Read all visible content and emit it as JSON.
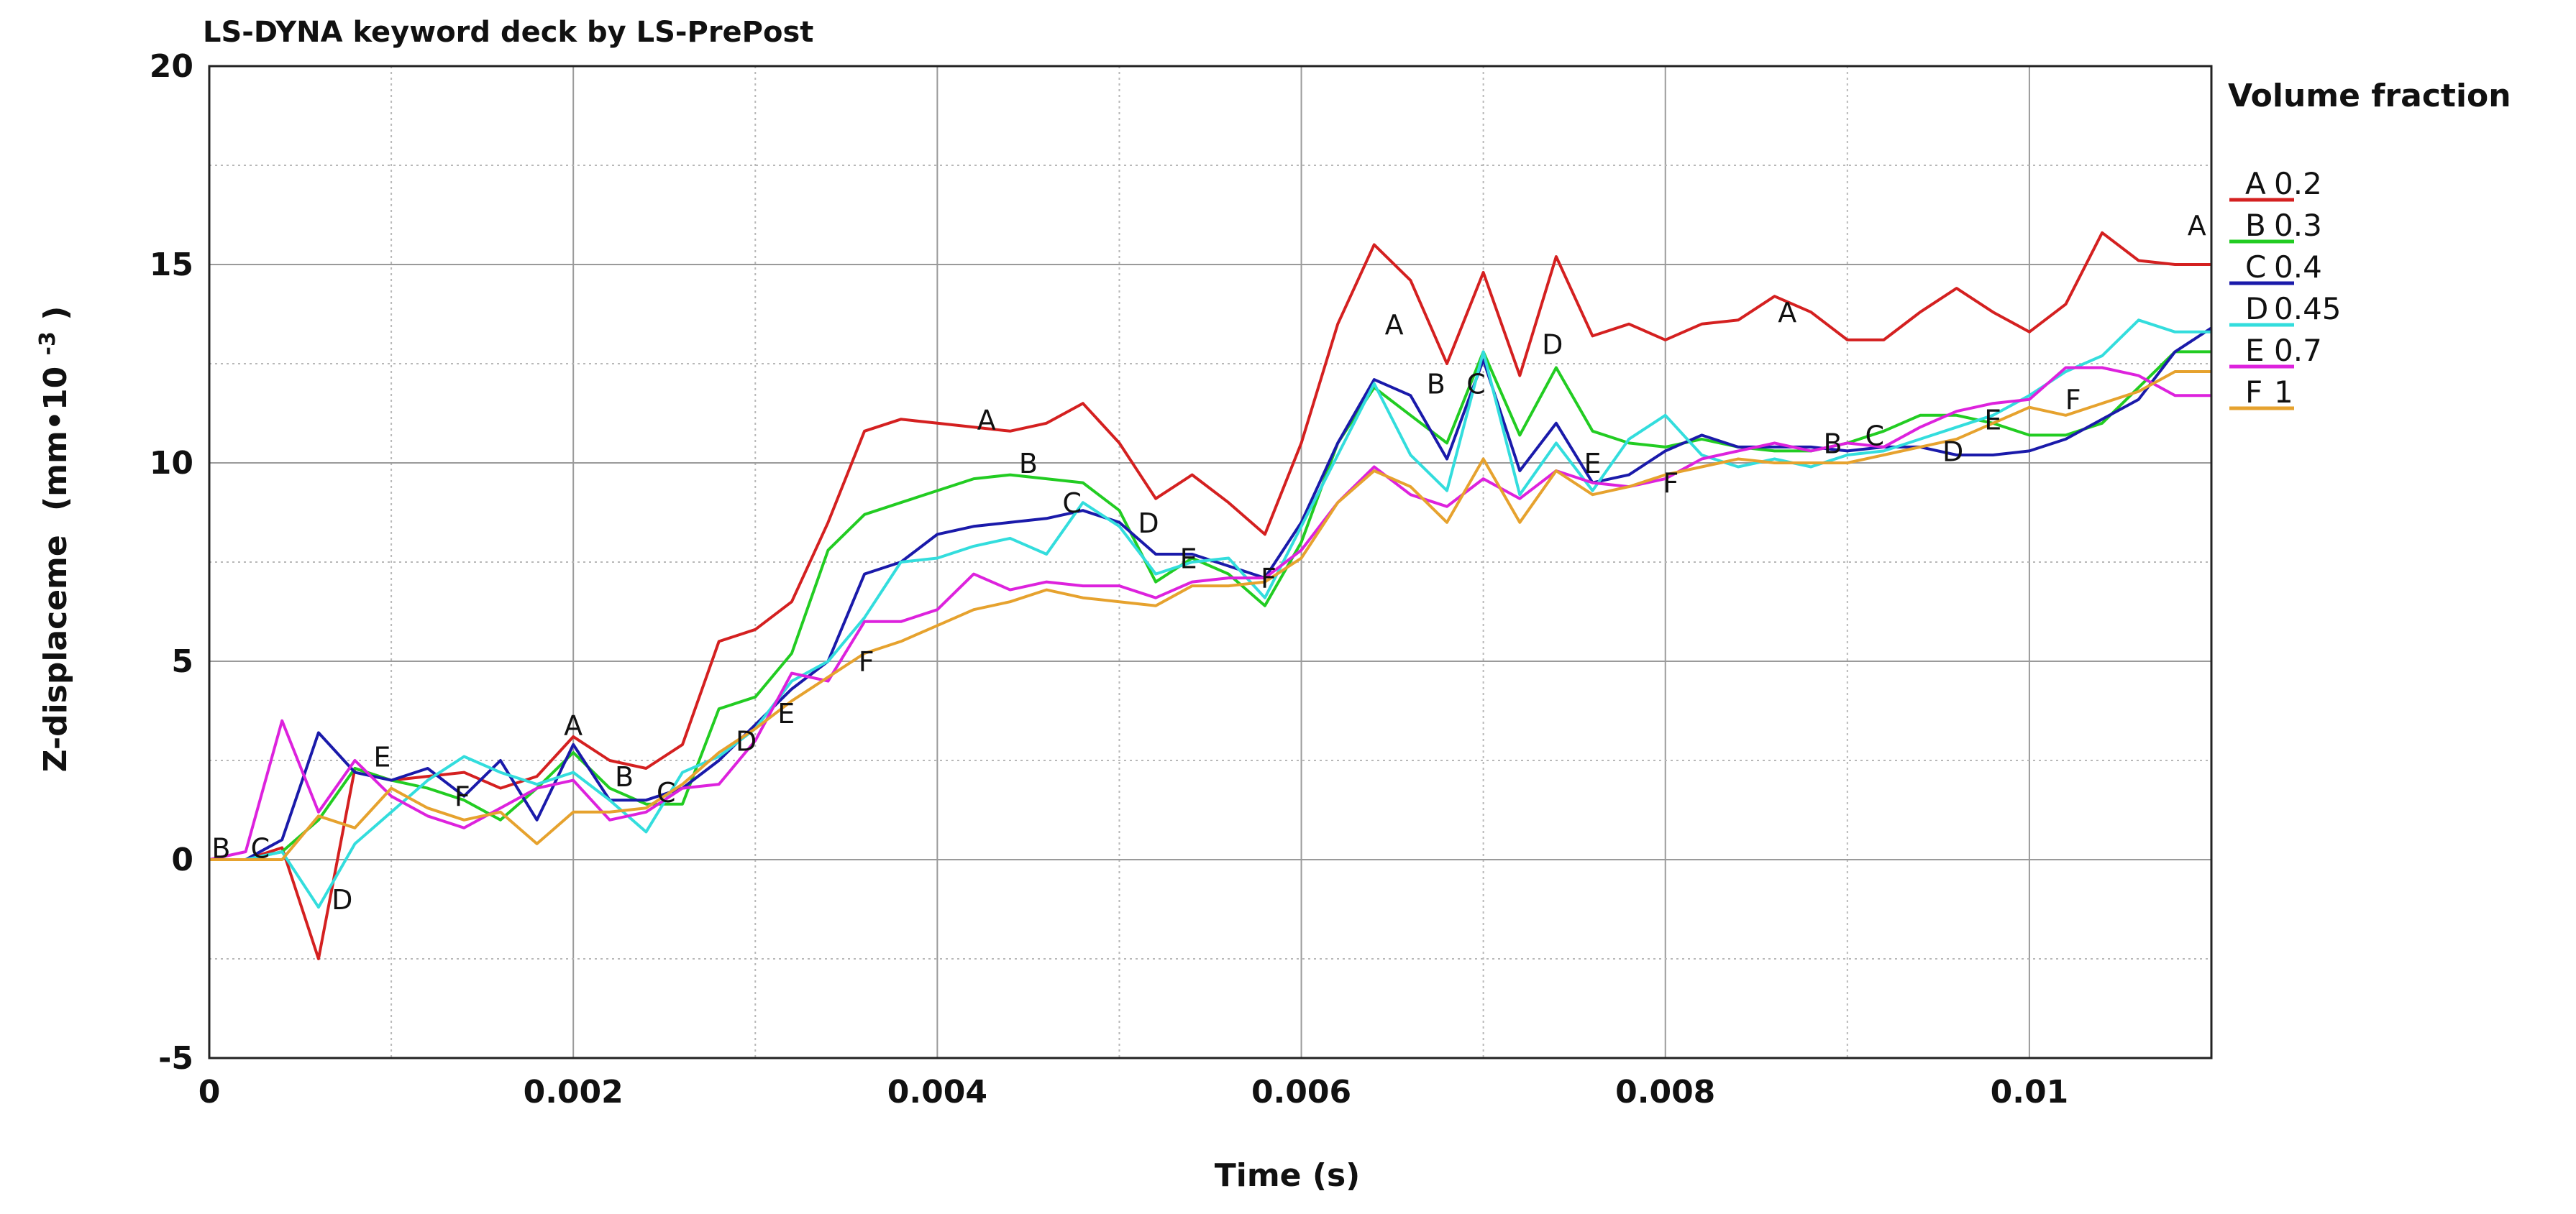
{
  "chart_data": {
    "type": "line",
    "title": "LS-DYNA keyword deck by LS-PrePost",
    "xlabel": "Time (s)",
    "ylabel_main": "Z-displaceme",
    "ylabel_unit_prefix": "(mm•10",
    "ylabel_unit_exp": "-3",
    "ylabel_unit_suffix": ")",
    "xlim": [
      0,
      0.011
    ],
    "ylim": [
      -5,
      20
    ],
    "xticks": [
      0,
      0.002,
      0.004,
      0.006,
      0.008,
      0.01
    ],
    "xtick_labels": [
      "0",
      "0.002",
      "0.004",
      "0.006",
      "0.008",
      "0.01"
    ],
    "yticks": [
      -5,
      0,
      5,
      10,
      15,
      20
    ],
    "ytick_labels": [
      "-5",
      "0",
      "5",
      "10",
      "15",
      "20"
    ],
    "grid": true,
    "legend_title": "Volume fraction",
    "legend_position": "right",
    "x": [
      0,
      0.0002,
      0.0004,
      0.0006,
      0.0008,
      0.001,
      0.0012,
      0.0014,
      0.0016,
      0.0018,
      0.002,
      0.0022,
      0.0024,
      0.0026,
      0.0028,
      0.003,
      0.0032,
      0.0034,
      0.0036,
      0.0038,
      0.004,
      0.0042,
      0.0044,
      0.0046,
      0.0048,
      0.005,
      0.0052,
      0.0054,
      0.0056,
      0.0058,
      0.006,
      0.0062,
      0.0064,
      0.0066,
      0.0068,
      0.007,
      0.0072,
      0.0074,
      0.0076,
      0.0078,
      0.008,
      0.0082,
      0.0084,
      0.0086,
      0.0088,
      0.009,
      0.0092,
      0.0094,
      0.0096,
      0.0098,
      0.01,
      0.0102,
      0.0104,
      0.0106,
      0.0108,
      0.011
    ],
    "series": [
      {
        "marker": "A",
        "name": "0.2",
        "color": "#d42020",
        "values": [
          0,
          0,
          0.3,
          -2.5,
          2.3,
          2.0,
          2.1,
          2.2,
          1.8,
          2.1,
          3.1,
          2.5,
          2.3,
          2.9,
          5.5,
          5.8,
          6.5,
          8.5,
          10.8,
          11.1,
          11.0,
          10.9,
          10.8,
          11.0,
          11.5,
          10.5,
          9.1,
          9.7,
          9.0,
          8.2,
          10.5,
          13.5,
          15.5,
          14.6,
          12.5,
          14.8,
          12.2,
          15.2,
          13.2,
          13.5,
          13.1,
          13.5,
          13.6,
          14.2,
          13.8,
          13.1,
          13.1,
          13.8,
          14.4,
          13.8,
          13.3,
          14.0,
          15.8,
          15.1,
          15.0,
          15.0
        ]
      },
      {
        "marker": "B",
        "name": "0.3",
        "color": "#22cc22",
        "values": [
          0,
          0,
          0.2,
          1.0,
          2.3,
          2.0,
          1.8,
          1.5,
          1.0,
          1.8,
          2.7,
          1.8,
          1.4,
          1.4,
          3.8,
          4.1,
          5.2,
          7.8,
          8.7,
          9.0,
          9.3,
          9.6,
          9.7,
          9.6,
          9.5,
          8.8,
          7.0,
          7.6,
          7.2,
          6.4,
          8.0,
          10.5,
          11.9,
          11.2,
          10.5,
          12.8,
          10.7,
          12.4,
          10.8,
          10.5,
          10.4,
          10.6,
          10.4,
          10.3,
          10.3,
          10.5,
          10.8,
          11.2,
          11.2,
          11.0,
          10.7,
          10.7,
          11.0,
          11.9,
          12.8,
          12.8
        ]
      },
      {
        "marker": "C",
        "name": "0.4",
        "color": "#1a1aaa",
        "values": [
          0,
          0,
          0.5,
          3.2,
          2.2,
          2.0,
          2.3,
          1.6,
          2.5,
          1.0,
          2.9,
          1.5,
          1.5,
          1.8,
          2.5,
          3.4,
          4.3,
          5.0,
          7.2,
          7.5,
          8.2,
          8.4,
          8.5,
          8.6,
          8.8,
          8.5,
          7.7,
          7.7,
          7.4,
          7.1,
          8.5,
          10.5,
          12.1,
          11.7,
          10.1,
          12.6,
          9.8,
          11.0,
          9.5,
          9.7,
          10.3,
          10.7,
          10.4,
          10.4,
          10.4,
          10.3,
          10.4,
          10.4,
          10.2,
          10.2,
          10.3,
          10.6,
          11.1,
          11.6,
          12.8,
          13.4
        ]
      },
      {
        "marker": "D",
        "name": "0.45",
        "color": "#33dddd",
        "values": [
          0,
          0,
          0.2,
          -1.2,
          0.4,
          1.2,
          2.0,
          2.6,
          2.2,
          1.9,
          2.2,
          1.5,
          0.7,
          2.2,
          2.6,
          3.3,
          4.5,
          5.0,
          6.1,
          7.5,
          7.6,
          7.9,
          8.1,
          7.7,
          9.0,
          8.4,
          7.2,
          7.5,
          7.6,
          6.6,
          8.4,
          10.2,
          12.0,
          10.2,
          9.3,
          12.8,
          9.2,
          10.5,
          9.3,
          10.6,
          11.2,
          10.2,
          9.9,
          10.1,
          9.9,
          10.2,
          10.3,
          10.6,
          10.9,
          11.2,
          11.7,
          12.3,
          12.7,
          13.6,
          13.3,
          13.3
        ]
      },
      {
        "marker": "E",
        "name": "0.7",
        "color": "#dd22dd",
        "values": [
          0,
          0.2,
          3.5,
          1.2,
          2.5,
          1.6,
          1.1,
          0.8,
          1.3,
          1.8,
          2.0,
          1.0,
          1.2,
          1.8,
          1.9,
          3.0,
          4.7,
          4.5,
          6.0,
          6.0,
          6.3,
          7.2,
          6.8,
          7.0,
          6.9,
          6.9,
          6.6,
          7.0,
          7.1,
          7.1,
          7.8,
          9.0,
          9.9,
          9.2,
          8.9,
          9.6,
          9.1,
          9.8,
          9.5,
          9.4,
          9.6,
          10.1,
          10.3,
          10.5,
          10.3,
          10.5,
          10.4,
          10.9,
          11.3,
          11.5,
          11.6,
          12.4,
          12.4,
          12.2,
          11.7,
          11.7
        ]
      },
      {
        "marker": "F",
        "name": "1",
        "color": "#e6a22e",
        "values": [
          0,
          0,
          0,
          1.1,
          0.8,
          1.8,
          1.3,
          1.0,
          1.2,
          0.4,
          1.2,
          1.2,
          1.3,
          1.9,
          2.7,
          3.3,
          4.0,
          4.6,
          5.2,
          5.5,
          5.9,
          6.3,
          6.5,
          6.8,
          6.6,
          6.5,
          6.4,
          6.9,
          6.9,
          7.0,
          7.6,
          9.0,
          9.8,
          9.4,
          8.5,
          10.1,
          8.5,
          9.8,
          9.2,
          9.4,
          9.7,
          9.9,
          10.1,
          10.0,
          10.0,
          10.0,
          10.2,
          10.4,
          10.6,
          11.0,
          11.4,
          11.2,
          11.5,
          11.8,
          12.3,
          12.3
        ]
      }
    ],
    "point_labels": [
      {
        "marker": "A",
        "x": 0.002,
        "y": 3.4
      },
      {
        "marker": "A",
        "x": 0.00427,
        "y": 11.1
      },
      {
        "marker": "A",
        "x": 0.00651,
        "y": 13.5
      },
      {
        "marker": "A",
        "x": 0.00867,
        "y": 13.8
      },
      {
        "marker": "A",
        "x": 0.01092,
        "y": 16.0
      },
      {
        "marker": "B",
        "x": 6.5e-05,
        "y": 0.3
      },
      {
        "marker": "B",
        "x": 0.00228,
        "y": 2.1
      },
      {
        "marker": "B",
        "x": 0.0045,
        "y": 10.0
      },
      {
        "marker": "B",
        "x": 0.00674,
        "y": 12.0
      },
      {
        "marker": "B",
        "x": 0.00892,
        "y": 10.5
      },
      {
        "marker": "C",
        "x": 0.00028,
        "y": 0.3
      },
      {
        "marker": "C",
        "x": 0.00251,
        "y": 1.7
      },
      {
        "marker": "C",
        "x": 0.00474,
        "y": 9.0
      },
      {
        "marker": "C",
        "x": 0.00696,
        "y": 12.0
      },
      {
        "marker": "C",
        "x": 0.00915,
        "y": 10.7
      },
      {
        "marker": "D",
        "x": 0.00073,
        "y": -1.0
      },
      {
        "marker": "D",
        "x": 0.00295,
        "y": 3.0
      },
      {
        "marker": "D",
        "x": 0.00516,
        "y": 8.5
      },
      {
        "marker": "D",
        "x": 0.00738,
        "y": 13.0
      },
      {
        "marker": "D",
        "x": 0.00958,
        "y": 10.3
      },
      {
        "marker": "E",
        "x": 0.00095,
        "y": 2.6
      },
      {
        "marker": "E",
        "x": 0.00317,
        "y": 3.7
      },
      {
        "marker": "E",
        "x": 0.00538,
        "y": 7.6
      },
      {
        "marker": "E",
        "x": 0.0076,
        "y": 10.0
      },
      {
        "marker": "E",
        "x": 0.0098,
        "y": 11.1
      },
      {
        "marker": "F",
        "x": 0.00139,
        "y": 1.6
      },
      {
        "marker": "F",
        "x": 0.00361,
        "y": 5.0
      },
      {
        "marker": "F",
        "x": 0.00582,
        "y": 7.1
      },
      {
        "marker": "F",
        "x": 0.00803,
        "y": 9.5
      },
      {
        "marker": "F",
        "x": 0.01024,
        "y": 11.6
      }
    ]
  }
}
